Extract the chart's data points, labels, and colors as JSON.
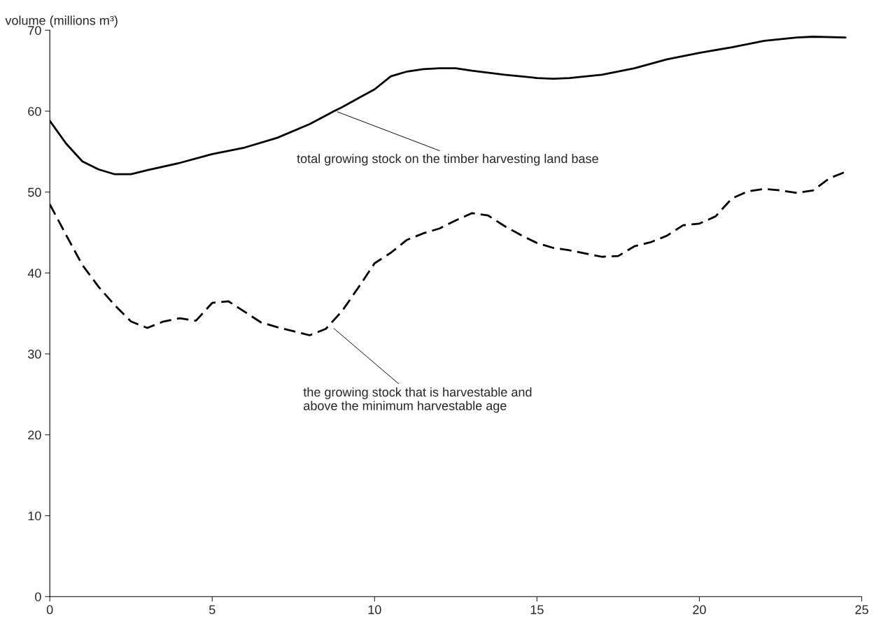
{
  "chart_data": {
    "type": "line",
    "ylabel": "volume (millions m³)",
    "xlim": [
      0,
      25
    ],
    "xticks": [
      0,
      5,
      10,
      15,
      20,
      25
    ],
    "ylim": [
      0,
      70
    ],
    "yticks": [
      0,
      10,
      20,
      30,
      40,
      50,
      60,
      70
    ],
    "grid": false,
    "legend": false,
    "series": [
      {
        "color": "#000000",
        "line_style": "solid",
        "x": [
          0,
          0.5,
          1,
          1.5,
          2,
          2.5,
          3,
          4,
          5,
          6,
          7,
          8,
          8.75,
          9,
          10,
          10.5,
          11,
          11.5,
          12,
          12.5,
          13,
          14,
          15,
          15.5,
          16,
          17,
          18,
          19,
          20,
          21,
          22,
          23,
          23.5,
          24.5
        ],
        "values": [
          58.8,
          56,
          53.8,
          52.8,
          52.2,
          52.2,
          52.7,
          53.6,
          54.7,
          55.5,
          56.7,
          58.4,
          60,
          60.5,
          62.7,
          64.3,
          64.9,
          65.2,
          65.3,
          65.3,
          65.0,
          64.5,
          64.1,
          64.0,
          64.1,
          64.5,
          65.3,
          66.4,
          67.2,
          67.9,
          68.7,
          69.1,
          69.2,
          69.1
        ]
      },
      {
        "color": "#000000",
        "line_style": "dashed",
        "x": [
          0,
          0.5,
          1,
          1.5,
          2,
          2.5,
          3,
          3.5,
          4,
          4.5,
          5,
          5.5,
          6,
          6.5,
          7,
          7.5,
          8,
          8.5,
          9,
          9.5,
          10,
          10.5,
          11,
          11.5,
          12,
          12.5,
          13,
          13.5,
          14,
          14.5,
          15,
          15.5,
          16,
          16.5,
          17,
          17.5,
          18,
          18.5,
          19,
          19.5,
          20,
          20.5,
          21,
          21.5,
          22,
          22.5,
          23,
          23.5,
          24,
          24.5
        ],
        "values": [
          48.5,
          44.7,
          41,
          38.3,
          36,
          34,
          33.2,
          34,
          34.4,
          34.1,
          36.3,
          36.5,
          35.2,
          33.9,
          33.3,
          32.8,
          32.3,
          33.1,
          35.3,
          38.2,
          41.2,
          42.5,
          44.1,
          44.9,
          45.5,
          46.5,
          47.4,
          47.1,
          45.8,
          44.7,
          43.7,
          43.1,
          42.8,
          42.4,
          42.0,
          42.1,
          43.3,
          43.8,
          44.6,
          45.9,
          46.1,
          47.0,
          49.2,
          50.1,
          50.4,
          50.2,
          49.9,
          50.2,
          51.7,
          52.5
        ]
      }
    ],
    "annotations": [
      {
        "text": "total growing stock on the timber harvesting land base",
        "x": 8.8,
        "y": 60
      },
      {
        "text": "the growing stock that is harvestable and\nabove the minimum harvestable age",
        "x": 8.7,
        "y": 33.3
      }
    ]
  }
}
